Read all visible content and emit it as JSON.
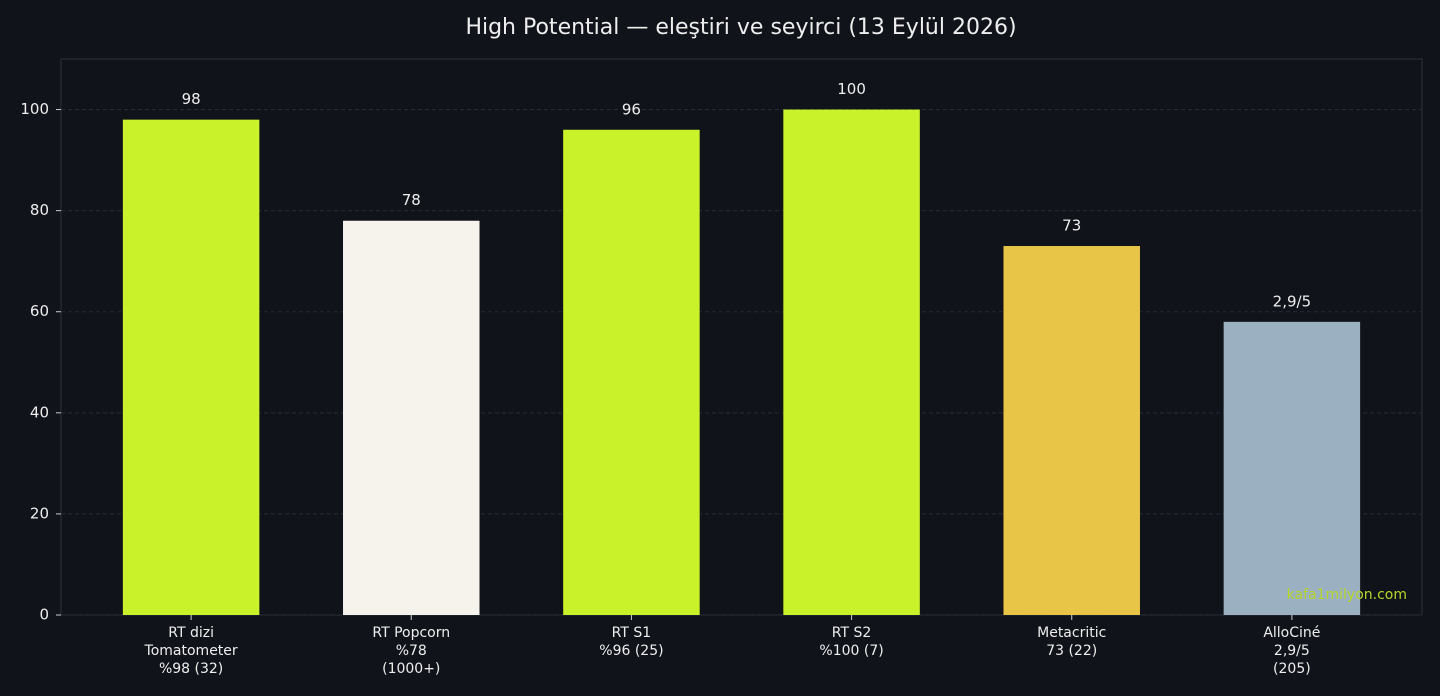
{
  "chart_data": {
    "type": "bar",
    "title": "High Potential — eleştiri ve seyirci (13 Eylül 2026)",
    "categories": [
      "RT dizi\nTomatometer\n%98 (32)",
      "RT Popcorn\n%78\n(1000+)",
      "RT S1\n%96 (25)",
      "RT S2\n%100 (7)",
      "Metacritic\n73 (22)",
      "AlloCiné\n2,9/5\n(205)"
    ],
    "values": [
      98,
      78,
      96,
      100,
      73,
      58
    ],
    "value_labels": [
      "98",
      "78",
      "96",
      "100",
      "73",
      "2,9/5"
    ],
    "colors": [
      "#c9f22b",
      "#f6f3ed",
      "#c9f22b",
      "#c9f22b",
      "#e8c547",
      "#9bb1c2"
    ],
    "ylim": [
      0,
      110
    ],
    "yticks": [
      0,
      20,
      40,
      60,
      80,
      100
    ],
    "grid": true,
    "watermark": "kafa1milyon.com"
  }
}
